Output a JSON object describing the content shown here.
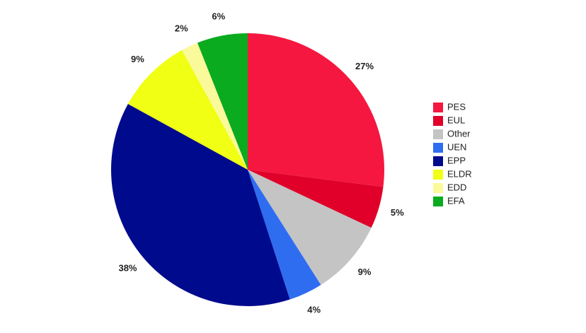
{
  "chart_data": {
    "type": "pie",
    "categories": [
      "PES",
      "EUL",
      "Other",
      "UEN",
      "EPP",
      "ELDR",
      "EDD",
      "EFA"
    ],
    "values": [
      27,
      5,
      9,
      4,
      38,
      9,
      2,
      6
    ],
    "value_labels": [
      "27%",
      "5%",
      "9%",
      "4%",
      "38%",
      "9%",
      "2%",
      "6%"
    ],
    "colors": [
      "#f5173f",
      "#e0002a",
      "#c4c4c4",
      "#2f6df0",
      "#000a8c",
      "#f0ff14",
      "#fafa9a",
      "#0aab1e"
    ],
    "legend": "right"
  }
}
